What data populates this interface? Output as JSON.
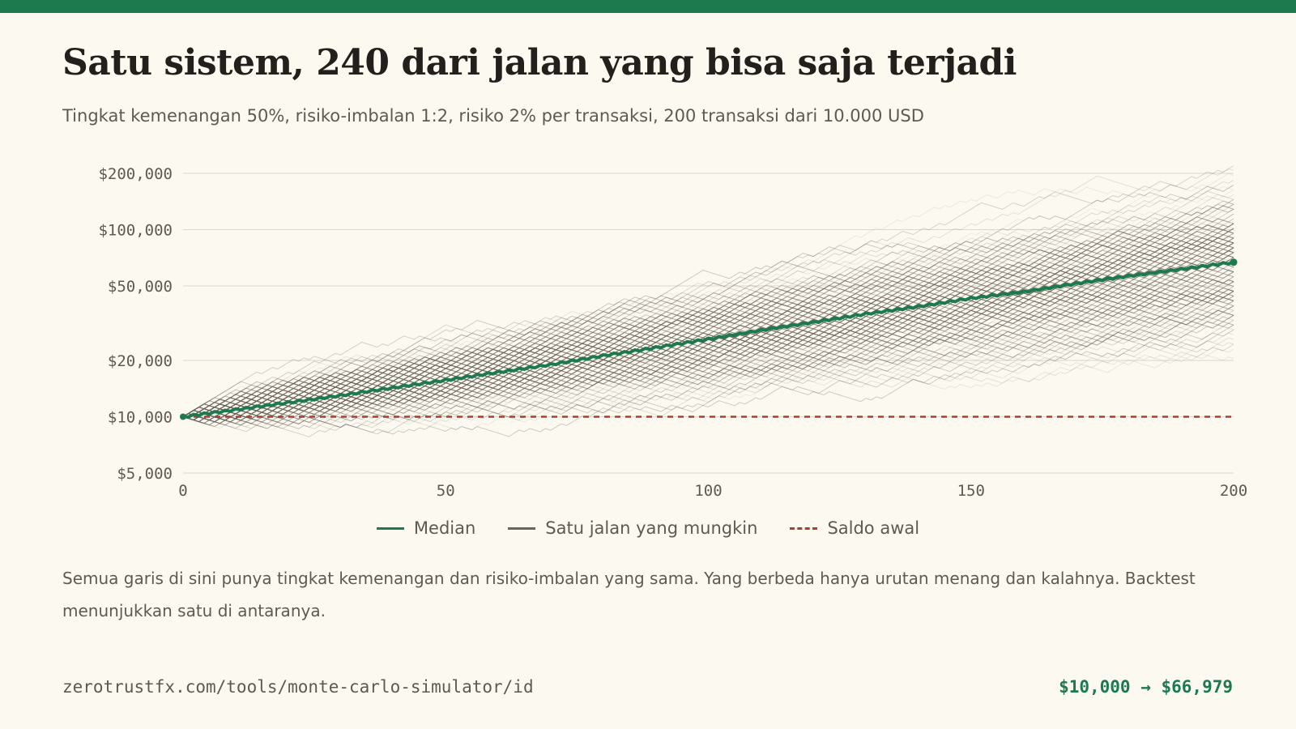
{
  "header": {
    "title": "Satu sistem, 240 dari jalan yang bisa saja terjadi",
    "subtitle": "Tingkat kemenangan 50%, risiko-imbalan 1:2, risiko 2% per transaksi, 200 transaksi dari 10.000 USD"
  },
  "legend": {
    "median": "Median",
    "path": "Satu jalan yang mungkin",
    "start": "Saldo awal"
  },
  "caption": "Semua garis di sini punya tingkat kemenangan dan risiko-imbalan yang sama. Yang berbeda hanya urutan menang dan kalahnya. Backtest menunjukkan satu di antaranya.",
  "footer": {
    "url": "zerotrustfx.com/tools/monte-carlo-simulator/id",
    "result": "$10,000 → $66,979"
  },
  "colors": {
    "median": "#1d7a4f",
    "path": "#6a645c",
    "start": "#a84032",
    "grid": "#ddd8c8"
  },
  "chart_data": {
    "type": "line",
    "y_scale": "log",
    "x_range": [
      0,
      200
    ],
    "y_range": [
      5000,
      200000
    ],
    "x_ticks": [
      0,
      50,
      100,
      150,
      200
    ],
    "x_tick_labels": [
      "0",
      "50",
      "100",
      "150",
      "200"
    ],
    "y_ticks": [
      5000,
      10000,
      20000,
      50000,
      100000,
      200000
    ],
    "y_tick_labels": [
      "$5,000",
      "$10,000",
      "$20,000",
      "$50,000",
      "$100,000",
      "$200,000"
    ],
    "grid": "horizontal",
    "legend_position": "bottom-center",
    "path_count": 240,
    "start_balance": 10000,
    "median_series": {
      "x": [
        0,
        10,
        20,
        30,
        40,
        50,
        60,
        70,
        80,
        90,
        100,
        110,
        120,
        130,
        140,
        150,
        160,
        170,
        180,
        190,
        200
      ],
      "y": [
        10000,
        10900,
        11900,
        13000,
        14300,
        15700,
        17300,
        19000,
        21200,
        23400,
        26000,
        29000,
        32000,
        35500,
        38800,
        43000,
        46500,
        51500,
        56500,
        61500,
        66979
      ]
    },
    "final_median": 66979
  }
}
